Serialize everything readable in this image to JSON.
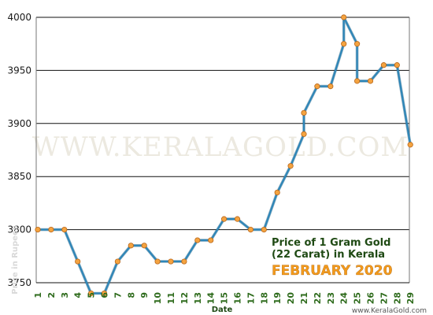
{
  "chart_data": {
    "type": "line",
    "title": "Price of 1 Gram Gold",
    "title_line2": "(22 Carat) in Kerala",
    "subtitle": "FEBRUARY 2020",
    "xlabel": "Date",
    "ylabel": "Price in Rupees",
    "ylim": [
      3750,
      4000
    ],
    "yticks": [
      3750,
      3800,
      3850,
      3900,
      3950,
      4000
    ],
    "xticks": [
      "1",
      "2",
      "3",
      "4",
      "5",
      "6",
      "7",
      "8",
      "9",
      "10",
      "11",
      "12",
      "13",
      "14",
      "15",
      "16",
      "17",
      "18",
      "19",
      "20",
      "21",
      "22",
      "23",
      "24",
      "25",
      "26",
      "27",
      "28",
      "29"
    ],
    "grid": "horizontal",
    "series": [
      {
        "points": [
          {
            "x": 1,
            "y": 3800
          },
          {
            "x": 2,
            "y": 3800
          },
          {
            "x": 3,
            "y": 3800
          },
          {
            "x": 4,
            "y": 3770
          },
          {
            "x": 5,
            "y": 3740
          },
          {
            "x": 6,
            "y": 3740
          },
          {
            "x": 7,
            "y": 3770
          },
          {
            "x": 8,
            "y": 3785
          },
          {
            "x": 9,
            "y": 3785
          },
          {
            "x": 10,
            "y": 3770
          },
          {
            "x": 11,
            "y": 3770
          },
          {
            "x": 12,
            "y": 3770
          },
          {
            "x": 13,
            "y": 3790
          },
          {
            "x": 14,
            "y": 3790
          },
          {
            "x": 15,
            "y": 3810
          },
          {
            "x": 16,
            "y": 3810
          },
          {
            "x": 17,
            "y": 3800
          },
          {
            "x": 18,
            "y": 3800
          },
          {
            "x": 19,
            "y": 3835
          },
          {
            "x": 20,
            "y": 3860
          },
          {
            "x": 21,
            "y": 3890
          },
          {
            "x": 21,
            "y": 3910
          },
          {
            "x": 22,
            "y": 3935
          },
          {
            "x": 23,
            "y": 3935
          },
          {
            "x": 24,
            "y": 3975
          },
          {
            "x": 24,
            "y": 4000
          },
          {
            "x": 25,
            "y": 3975
          },
          {
            "x": 25,
            "y": 3940
          },
          {
            "x": 26,
            "y": 3940
          },
          {
            "x": 27,
            "y": 3955
          },
          {
            "x": 28,
            "y": 3955
          },
          {
            "x": 29,
            "y": 3880
          }
        ]
      }
    ],
    "line_color": "#2e86b8",
    "marker_color": "#f4a340",
    "watermark": "WWW.KERALAGOLD.COM",
    "credit": "www.KeralaGold.com"
  }
}
